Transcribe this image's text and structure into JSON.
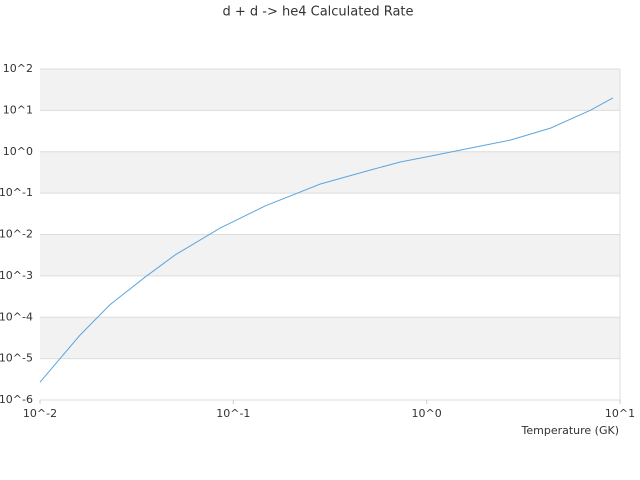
{
  "chart_data": {
    "type": "line",
    "title": "d + d -> he4 Calculated Rate",
    "x_label": "Temperature (GK)",
    "x": [
      0.01,
      0.0161,
      0.023,
      0.0349,
      0.05,
      0.0857,
      0.146,
      0.282,
      0.51,
      0.73,
      1,
      1.69,
      2.72,
      4.39,
      7.06,
      9.18
    ],
    "series": [
      {
        "color": "#5ba6e0",
        "values": [
          2.7e-06,
          3.7e-05,
          0.0002,
          0.00093,
          0.0032,
          0.0144,
          0.049,
          0.166,
          0.36,
          0.565,
          0.75,
          1.23,
          1.92,
          3.75,
          10.2,
          20
        ]
      }
    ],
    "xlim": [
      0.01,
      10
    ],
    "ylim": [
      1e-06,
      100
    ],
    "xticks": [
      {
        "value": 0.01,
        "label": "10^-2"
      },
      {
        "value": 0.1,
        "label": "10^-1"
      },
      {
        "value": 1,
        "label": "10^0"
      },
      {
        "value": 10,
        "label": "10^1"
      }
    ],
    "yticks": [
      {
        "value": 1e-06,
        "label": "10^-6"
      },
      {
        "value": 1e-05,
        "label": "10^-5"
      },
      {
        "value": 0.0001,
        "label": "10^-4"
      },
      {
        "value": 0.001,
        "label": "10^-3"
      },
      {
        "value": 0.01,
        "label": "10^-2"
      },
      {
        "value": 0.1,
        "label": "10^-1"
      },
      {
        "value": 1,
        "label": "10^0"
      },
      {
        "value": 10,
        "label": "10^1"
      },
      {
        "value": 100,
        "label": "10^2"
      }
    ],
    "x_log": true,
    "y_log": true,
    "grid": true
  }
}
